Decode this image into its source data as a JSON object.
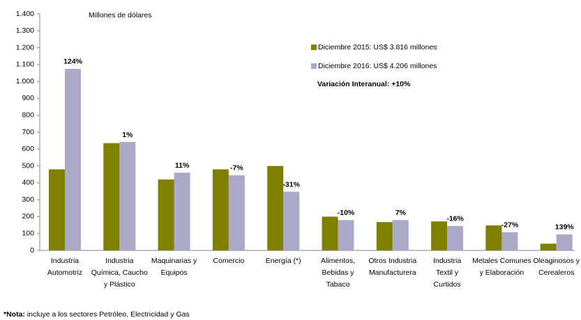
{
  "chart_data": {
    "type": "bar",
    "unit_label": "Millones de dólares",
    "categories": [
      "Industria Automotriz",
      "Industria Química, Caucho y Plástico",
      "Maquinarias y Equipos",
      "Comercio",
      "Energía (*)",
      "Alimentos, Bebidas y Tabaco",
      "Otros Industria Manufacturera",
      "Industria Textil y Curtidos",
      "Metales Comunes y Elaboración",
      "Oleaginosos y Cerealeros"
    ],
    "series": [
      {
        "name": "Diciembre 2015: US$ 3.816 millones",
        "color": "#7f7f00",
        "values": [
          480,
          635,
          420,
          480,
          500,
          200,
          168,
          172,
          148,
          40
        ]
      },
      {
        "name": "Diciembre 2016: US$ 4.206 millones",
        "color": "#aaaac8",
        "values": [
          1075,
          642,
          460,
          445,
          348,
          180,
          180,
          145,
          108,
          95
        ]
      }
    ],
    "variation_labels": [
      "124%",
      "1%",
      "11%",
      "-7%",
      "-31%",
      "-10%",
      "7%",
      "-16%",
      "-27%",
      "139%"
    ],
    "variation_colors": [
      "#3c9a5f",
      "#3c9a5f",
      "#3c9a5f",
      "#e8202a",
      "#e8202a",
      "#e8202a",
      "#3c9a5f",
      "#e8202a",
      "#e8202a",
      "#3c9a5f"
    ],
    "summary": "Variación Interanual: +10%",
    "summary_color": "#3c9a5f",
    "ylim": [
      0,
      1400
    ],
    "yticks": [
      0,
      100,
      200,
      300,
      400,
      500,
      600,
      700,
      800,
      900,
      {
        "value": 1000,
        "label": "1.000"
      },
      {
        "value": 1100,
        "label": "1.100"
      },
      {
        "value": 1200,
        "label": "1.200"
      },
      {
        "value": 1300,
        "label": "1.300"
      },
      {
        "value": 1400,
        "label": "1.400"
      }
    ]
  },
  "note": {
    "lead": "*Nota:",
    "text": " incluye a los sectores Petróleo, Electricidad y Gas"
  }
}
